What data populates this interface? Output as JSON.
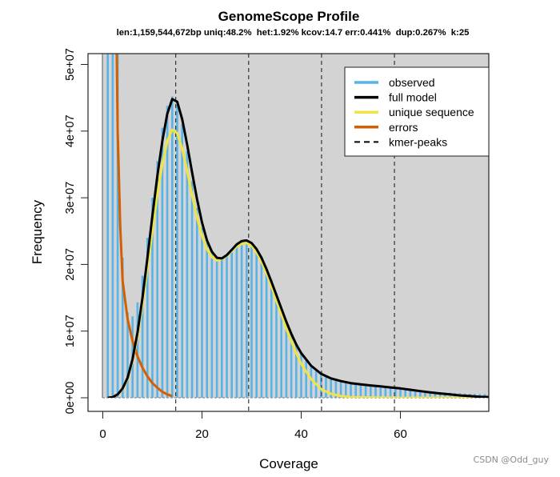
{
  "chart_data": {
    "type": "bar",
    "title": "GenomeScope Profile",
    "subtitle": "len:1,159,544,672bp uniq:48.2%  het:1.92% kcov:14.7 err:0.441%  dup:0.267%  k:25",
    "xlabel": "Coverage",
    "ylabel": "Frequency",
    "xlim": [
      -2.6,
      77.8
    ],
    "ylim": [
      -2000000.0,
      52000000.0
    ],
    "x_ticks": [
      0,
      20,
      40,
      60
    ],
    "x_tick_labels": [
      "0",
      "20",
      "40",
      "60"
    ],
    "y_ticks": [
      0,
      10000000,
      20000000,
      30000000,
      40000000,
      50000000
    ],
    "y_tick_labels": [
      "0e+00",
      "1e+07",
      "2e+07",
      "3e+07",
      "4e+07",
      "5e+07"
    ],
    "grid": false,
    "plot_background": "#d3d3d3",
    "legend_position": "topright",
    "legend": [
      {
        "label": "observed",
        "color": "#56B4E9",
        "style": "solid"
      },
      {
        "label": "full model",
        "color": "#000000",
        "style": "solid"
      },
      {
        "label": "unique sequence",
        "color": "#F0E442",
        "style": "solid"
      },
      {
        "label": "errors",
        "color": "#D55E00",
        "style": "solid"
      },
      {
        "label": "kmer-peaks",
        "color": "#000000",
        "style": "dashed"
      }
    ],
    "kmer_peaks": [
      14.7,
      29.4,
      44.1,
      58.8
    ],
    "series": [
      {
        "name": "observed",
        "type": "bar",
        "color": "#56B4E9",
        "x": [
          1,
          2,
          3,
          4,
          5,
          6,
          7,
          8,
          9,
          10,
          11,
          12,
          13,
          14,
          15,
          16,
          17,
          18,
          19,
          20,
          21,
          22,
          23,
          24,
          25,
          26,
          27,
          28,
          29,
          30,
          31,
          32,
          33,
          34,
          35,
          36,
          37,
          38,
          39,
          40,
          41,
          42,
          43,
          44,
          45,
          46,
          47,
          48,
          49,
          50,
          51,
          52,
          53,
          54,
          55,
          56,
          57,
          58,
          59,
          60,
          61,
          62,
          63,
          64,
          65,
          66,
          67,
          68,
          69,
          70,
          71,
          72,
          73,
          74,
          75,
          76,
          77
        ],
        "values": [
          90000000,
          70000000,
          60000000,
          21000000,
          12800000,
          12200000,
          14300000,
          18300000,
          24000000,
          30000000,
          35500000,
          40500000,
          43800000,
          45200000,
          44000000,
          41000000,
          37000000,
          32500000,
          28500000,
          25500000,
          23200000,
          21800000,
          21000000,
          21000000,
          21500000,
          22300000,
          23000000,
          23500000,
          23600000,
          23300000,
          22500000,
          21200000,
          19600000,
          17700000,
          15700000,
          13600000,
          11600000,
          9700000,
          8000000,
          6600000,
          5500000,
          4700000,
          4000000,
          3500000,
          3100000,
          2800000,
          2600000,
          2400000,
          2250000,
          2100000,
          2000000,
          1900000,
          1800000,
          1700000,
          1650000,
          1600000,
          1500000,
          1450000,
          1400000,
          1300000,
          1250000,
          1200000,
          1100000,
          1050000,
          1000000,
          950000,
          900000,
          850000,
          800000,
          750000,
          700000,
          700000,
          650000,
          600000,
          600000,
          550000,
          550000
        ]
      },
      {
        "name": "full model",
        "type": "line",
        "color": "#000000",
        "x": [
          1,
          2,
          3,
          4,
          5,
          6,
          7,
          8,
          9,
          10,
          11,
          12,
          13,
          14,
          15,
          16,
          17,
          18,
          19,
          20,
          21,
          22,
          23,
          24,
          25,
          26,
          27,
          28,
          29,
          30,
          31,
          32,
          33,
          34,
          35,
          36,
          37,
          38,
          39,
          40,
          42,
          44,
          46,
          48,
          50,
          52,
          54,
          56,
          58,
          60,
          62,
          64,
          66,
          68,
          70,
          72,
          74,
          76,
          78
        ],
        "values": [
          0,
          100000,
          500000,
          1400000,
          3000000,
          5800000,
          9800000,
          15000000,
          21000000,
          27300000,
          33300000,
          38500000,
          42600000,
          44800000,
          44400000,
          41800000,
          38000000,
          33800000,
          29800000,
          26300000,
          23600000,
          21900000,
          21000000,
          20900000,
          21400000,
          22200000,
          23000000,
          23500000,
          23600000,
          23200000,
          22300000,
          21000000,
          19300000,
          17400000,
          15400000,
          13400000,
          11400000,
          9600000,
          8000000,
          6700000,
          4800000,
          3600000,
          2900000,
          2500000,
          2200000,
          2000000,
          1850000,
          1700000,
          1550000,
          1400000,
          1200000,
          1000000,
          800000,
          650000,
          500000,
          350000,
          250000,
          150000,
          100000
        ]
      },
      {
        "name": "unique sequence",
        "type": "line",
        "color": "#F0E442",
        "x": [
          1,
          2,
          3,
          4,
          5,
          6,
          7,
          8,
          9,
          10,
          11,
          12,
          13,
          14,
          15,
          16,
          17,
          18,
          19,
          20,
          21,
          22,
          23,
          24,
          25,
          26,
          27,
          28,
          29,
          30,
          31,
          32,
          33,
          34,
          35,
          36,
          37,
          38,
          39,
          40,
          42,
          44,
          46,
          48,
          50,
          55,
          60,
          65,
          70,
          78
        ],
        "values": [
          0,
          100000,
          450000,
          1300000,
          2800000,
          5500000,
          9200000,
          14000000,
          19500000,
          25000000,
          30500000,
          35000000,
          38500000,
          40200000,
          39700000,
          37400000,
          34000000,
          30400000,
          27000000,
          24300000,
          22300000,
          21100000,
          20600000,
          20800000,
          21300000,
          22000000,
          22700000,
          23100000,
          23200000,
          22800000,
          21800000,
          20400000,
          18700000,
          16700000,
          14600000,
          12500000,
          10400000,
          8500000,
          6700000,
          5100000,
          2800000,
          1300000,
          600000,
          250000,
          100000,
          20000,
          0,
          0,
          0,
          0
        ]
      },
      {
        "name": "errors",
        "type": "line",
        "color": "#D55E00",
        "x": [
          2.8,
          3,
          3.5,
          4,
          5,
          6,
          7,
          8,
          9,
          10,
          11,
          12,
          13,
          14
        ],
        "values": [
          52000000,
          40000000,
          26000000,
          17500000,
          11800000,
          8500000,
          6200000,
          4500000,
          3200000,
          2200000,
          1500000,
          900000,
          500000,
          250000
        ]
      }
    ]
  },
  "watermark": "CSDN @Odd_guy"
}
